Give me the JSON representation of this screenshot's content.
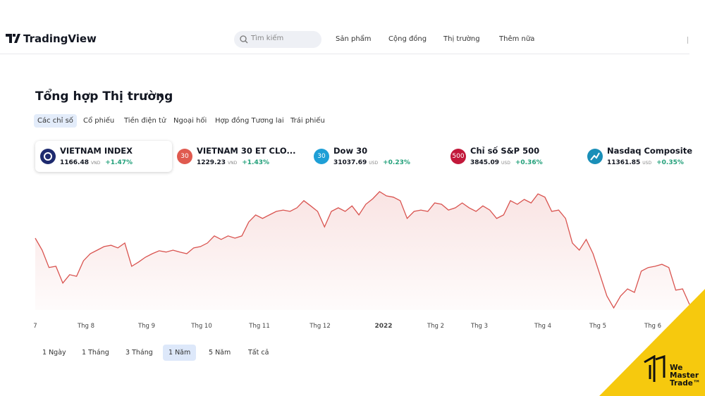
{
  "header": {
    "logo": "TradingView",
    "search_placeholder": "Tìm kiếm",
    "nav": [
      "Sản phẩm",
      "Cộng đồng",
      "Thị trường",
      "Thêm nữa"
    ]
  },
  "section_title": "Tổng hợp Thị trường",
  "tabs": [
    "Các chỉ số",
    "Cổ phiếu",
    "Tiền điện tử",
    "Ngoại hối",
    "Hợp đồng Tương lai",
    "Trái phiếu"
  ],
  "tickers": [
    {
      "name": "VIETNAM INDEX",
      "price": "1166.48",
      "currency": "VND",
      "change": "+1.47%",
      "icon_color": "#1d2a6e"
    },
    {
      "icon": "30",
      "name": "VIETNAM 30 ET CLO...",
      "price": "1229.23",
      "currency": "VND",
      "change": "+1.43%",
      "icon_color": "#e05a4f"
    },
    {
      "icon": "30",
      "name": "Dow 30",
      "price": "31037.69",
      "currency": "USD",
      "change": "+0.23%",
      "icon_color": "#1e9fd6"
    },
    {
      "icon": "500",
      "name": "Chỉ số S&P 500",
      "price": "3845.09",
      "currency": "USD",
      "change": "+0.36%",
      "icon_color": "#c2183a"
    },
    {
      "name": "Nasdaq Composite",
      "price": "11361.85",
      "currency": "USD",
      "change": "+0.35%",
      "icon_color": "#1a8fb8"
    }
  ],
  "chart": {
    "type": "line",
    "color": "#d9534f",
    "x_labels": [
      "7",
      "Thg 8",
      "Thg 9",
      "Thg 10",
      "Thg 11",
      "Thg 12",
      "2022",
      "Thg 2",
      "Thg 3",
      "Thg 4",
      "Thg 5",
      "Thg 6"
    ],
    "values": [
      1386,
      1349,
      1295,
      1299,
      1247,
      1273,
      1268,
      1316,
      1338,
      1349,
      1360,
      1364,
      1356,
      1371,
      1299,
      1312,
      1327,
      1338,
      1347,
      1343,
      1349,
      1343,
      1338,
      1356,
      1360,
      1371,
      1393,
      1382,
      1393,
      1386,
      1393,
      1436,
      1458,
      1447,
      1458,
      1469,
      1473,
      1469,
      1480,
      1502,
      1486,
      1469,
      1421,
      1469,
      1480,
      1469,
      1486,
      1458,
      1491,
      1508,
      1530,
      1517,
      1513,
      1502,
      1447,
      1469,
      1473,
      1469,
      1495,
      1491,
      1473,
      1480,
      1495,
      1480,
      1469,
      1486,
      1473,
      1447,
      1458,
      1502,
      1491,
      1506,
      1495,
      1523,
      1513,
      1469,
      1473,
      1447,
      1371,
      1349,
      1382,
      1338,
      1273,
      1207,
      1170,
      1207,
      1229,
      1218,
      1284,
      1295,
      1299,
      1305,
      1295,
      1225,
      1229,
      1181
    ]
  },
  "ranges": [
    "1 Ngày",
    "1 Tháng",
    "3 Tháng",
    "1 Năm",
    "5 Năm",
    "Tất cả"
  ],
  "watermark": [
    "We",
    "Master",
    "Trade™"
  ]
}
